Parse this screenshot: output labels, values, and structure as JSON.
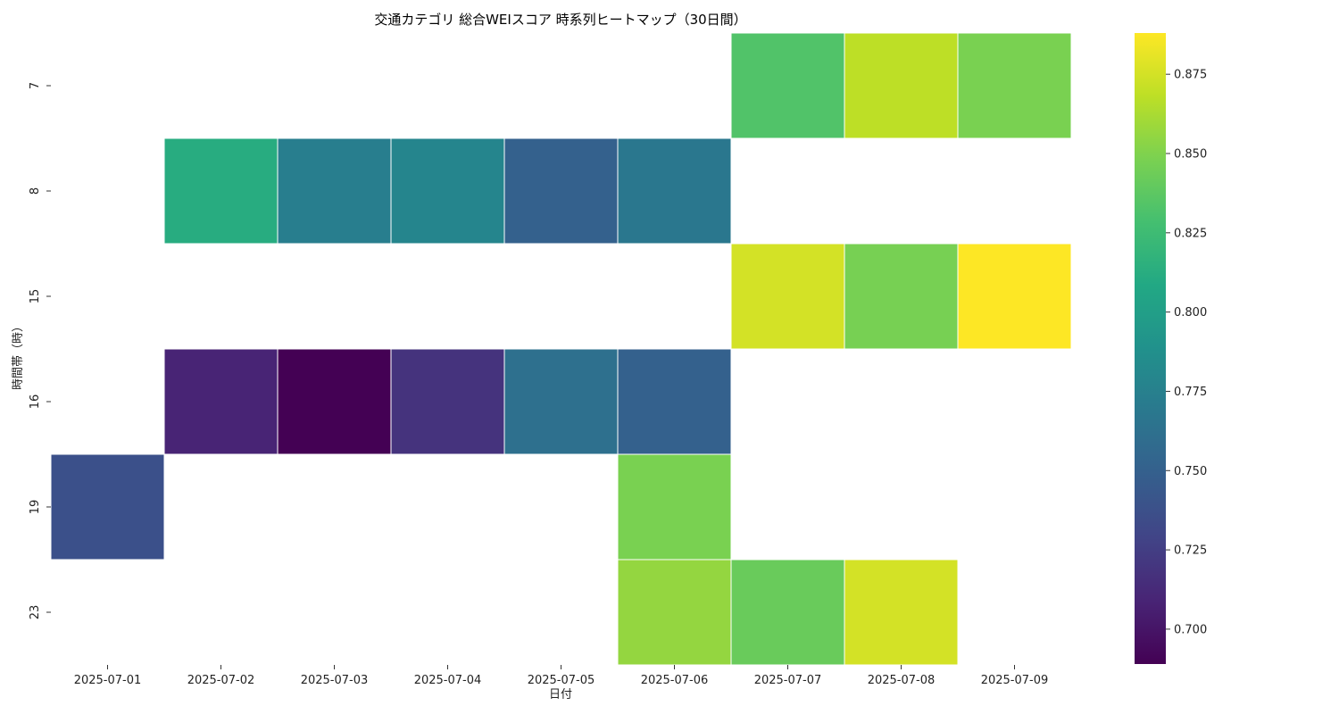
{
  "chart_data": {
    "type": "heatmap",
    "title": "交通カテゴリ 総合WEIスコア 時系列ヒートマップ（30日間）",
    "xlabel": "日付",
    "ylabel": "時間帯（時）",
    "x_categories": [
      "2025-07-01",
      "2025-07-02",
      "2025-07-03",
      "2025-07-04",
      "2025-07-05",
      "2025-07-06",
      "2025-07-07",
      "2025-07-08",
      "2025-07-09"
    ],
    "y_categories": [
      "7",
      "8",
      "15",
      "16",
      "19",
      "23"
    ],
    "values": [
      [
        null,
        null,
        null,
        null,
        null,
        null,
        0.833,
        0.868,
        0.848
      ],
      [
        null,
        0.812,
        0.773,
        0.779,
        0.75,
        0.768,
        null,
        null,
        null
      ],
      [
        null,
        null,
        null,
        null,
        null,
        null,
        0.875,
        0.847,
        0.888
      ],
      [
        null,
        0.709,
        0.689,
        0.718,
        0.762,
        0.75,
        null,
        null,
        null
      ],
      [
        0.738,
        null,
        null,
        null,
        null,
        0.848,
        null,
        null,
        null
      ],
      [
        null,
        null,
        null,
        null,
        null,
        0.856,
        0.842,
        0.875,
        null
      ]
    ],
    "colormap": "viridis",
    "vmin": 0.689,
    "vmax": 0.888,
    "colorbar_ticks": [
      "0.700",
      "0.725",
      "0.750",
      "0.775",
      "0.800",
      "0.825",
      "0.850",
      "0.875"
    ],
    "cell_border_color": "#ffffff",
    "missing_color": "#ffffff"
  }
}
